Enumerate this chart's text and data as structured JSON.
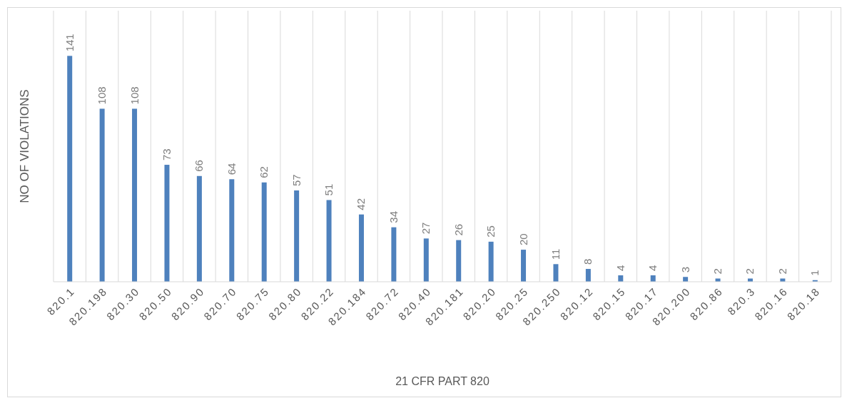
{
  "chart_data": {
    "type": "bar",
    "xlabel": "21 CFR PART 820",
    "ylabel": "NO OF VIOLATIONS",
    "categories": [
      "820.1",
      "820.198",
      "820.30",
      "820.50",
      "820.90",
      "820.70",
      "820.75",
      "820.80",
      "820.22",
      "820.184",
      "820.72",
      "820.40",
      "820.181",
      "820.20",
      "820.25",
      "820.250",
      "820.12",
      "820.15",
      "820.17",
      "820.200",
      "820.86",
      "820.3",
      "820.16",
      "820.18"
    ],
    "values": [
      141,
      108,
      108,
      73,
      66,
      64,
      62,
      57,
      51,
      42,
      34,
      27,
      26,
      25,
      20,
      11,
      8,
      4,
      4,
      3,
      2,
      2,
      2,
      1
    ],
    "color": "#4e81bd",
    "data_labels": true,
    "grid": "x"
  }
}
